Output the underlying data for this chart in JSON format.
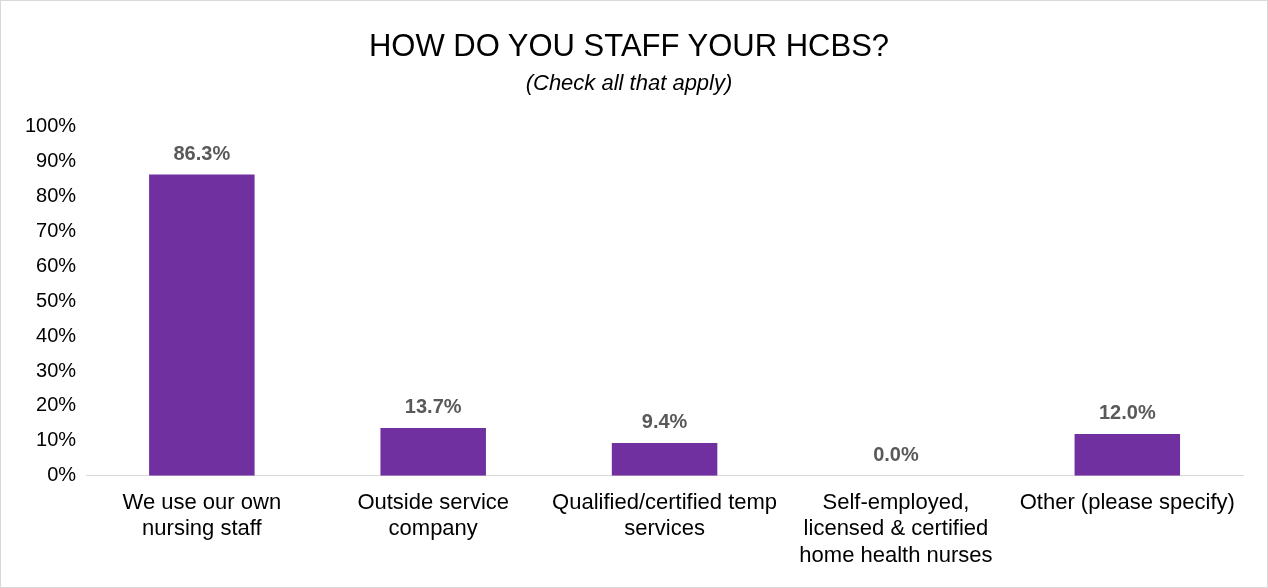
{
  "chart_data": {
    "type": "bar",
    "title": "HOW DO YOU STAFF YOUR HCBS?",
    "subtitle": "(Check all that apply)",
    "categories": [
      "We use our own nursing staff",
      "Outside service company",
      "Qualified/certified temp services",
      "Self-employed, licensed & certified home health nurses",
      "Other (please specify)"
    ],
    "values": [
      86.3,
      13.7,
      9.4,
      0.0,
      12.0
    ],
    "value_labels": [
      "86.3%",
      "13.7%",
      "9.4%",
      "0.0%",
      "12.0%"
    ],
    "color": "#7030a0",
    "ylim": [
      0,
      100
    ],
    "yticks": [
      {
        "value": 0,
        "label": "0%"
      },
      {
        "value": 10,
        "label": "10%"
      },
      {
        "value": 20,
        "label": "20%"
      },
      {
        "value": 30,
        "label": "30%"
      },
      {
        "value": 40,
        "label": "40%"
      },
      {
        "value": 50,
        "label": "50%"
      },
      {
        "value": 60,
        "label": "60%"
      },
      {
        "value": 70,
        "label": "70%"
      },
      {
        "value": 80,
        "label": "80%"
      },
      {
        "value": 90,
        "label": "90%"
      },
      {
        "value": 100,
        "label": "100%"
      }
    ],
    "grid": false,
    "legend": false
  }
}
